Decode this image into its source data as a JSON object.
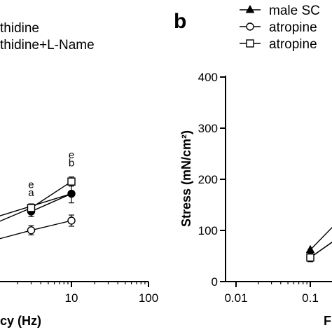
{
  "chart_data": [
    {
      "type": "line",
      "panel": "",
      "xscale": "log",
      "x_tick_labels": [
        "10",
        "100"
      ],
      "xlabel": "cy (Hz)",
      "ylabel": "",
      "legend": [
        "thidine",
        "thidine+L-Name"
      ],
      "annotations": [
        {
          "x": 3,
          "y": 184,
          "label": "e"
        },
        {
          "x": 3,
          "y": 168,
          "label": "a"
        },
        {
          "x": 10,
          "y": 243,
          "label": "e"
        },
        {
          "x": 10,
          "y": 227,
          "label": "b"
        }
      ],
      "series": [
        {
          "marker": "filled-circle",
          "x": [
            3,
            10
          ],
          "y": [
            138,
            173
          ],
          "err": [
            10,
            18
          ]
        },
        {
          "marker": "open-circle",
          "x": [
            3,
            10
          ],
          "y": [
            101,
            120
          ],
          "err": [
            9,
            11
          ]
        },
        {
          "marker": "open-square",
          "x": [
            3,
            10
          ],
          "y": [
            145,
            197
          ],
          "err": [
            8,
            9
          ]
        }
      ],
      "extra_lines": [
        {
          "x": [
            0.58,
            3
          ],
          "y": [
            99,
            145
          ]
        },
        {
          "x": [
            0.58,
            10
          ],
          "y": [
            115,
            173
          ]
        },
        {
          "x": [
            0.58,
            3
          ],
          "y": [
            72,
            101
          ]
        }
      ]
    },
    {
      "type": "line",
      "panel": "b",
      "xscale": "log",
      "xlim": [
        0.01,
        1
      ],
      "ylim": [
        0,
        400
      ],
      "x_tick_labels": [
        "0.01",
        "0.1"
      ],
      "y_tick_labels": [
        "0",
        "100",
        "200",
        "300",
        "400"
      ],
      "xlabel": "F",
      "ylabel": "Stress (mN/cm²)",
      "legend": [
        "male SC",
        "atropine",
        "atropine"
      ],
      "series": [
        {
          "marker": "filled-triangle",
          "x": [
            0.1
          ],
          "y": [
            62
          ]
        },
        {
          "marker": "open-circle",
          "x": [
            0.1
          ],
          "y": [
            47
          ]
        },
        {
          "marker": "open-square",
          "x": [
            0.1
          ],
          "y": [
            47
          ]
        }
      ]
    }
  ]
}
